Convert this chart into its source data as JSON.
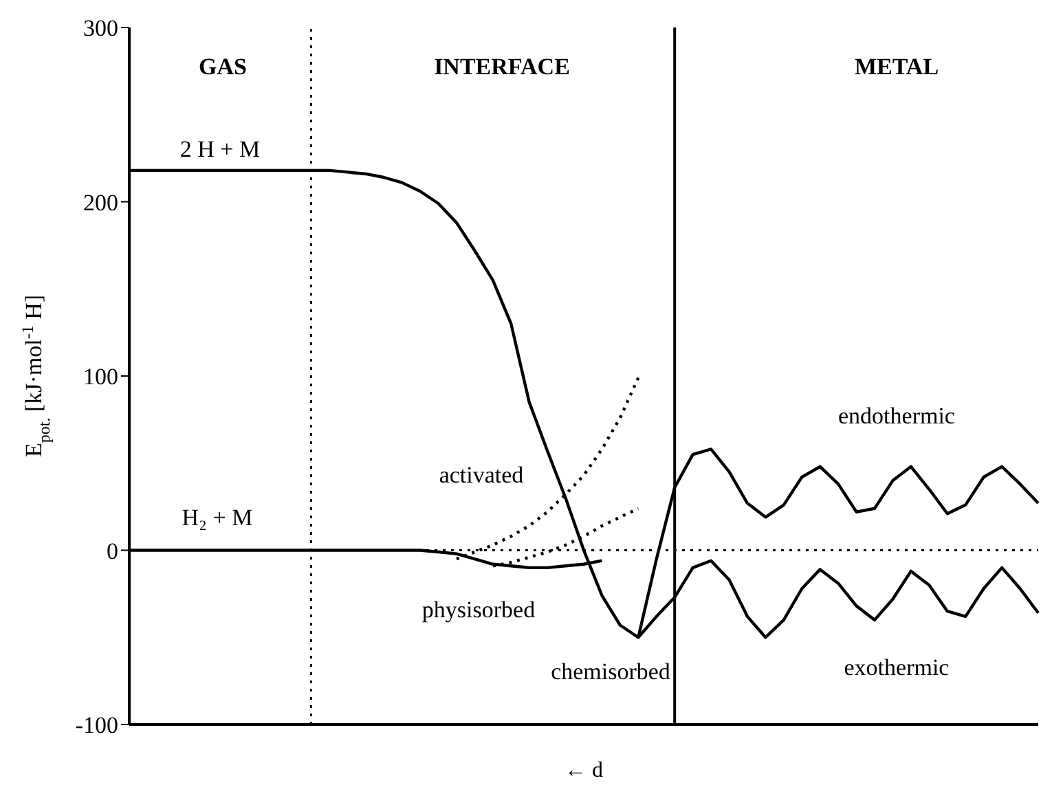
{
  "chart_data": {
    "type": "line",
    "xlabel": "← d",
    "ylabel": "E$_{pot.}$ [kJ·mol$^{-1}$ H]",
    "categories": [
      null,
      null,
      null,
      null,
      null,
      null,
      null,
      null,
      null,
      null,
      null,
      null,
      null,
      null,
      null,
      null,
      null,
      null,
      null,
      null,
      null,
      null,
      null,
      null,
      null,
      null,
      null,
      null,
      null,
      null,
      null,
      null,
      null,
      null,
      null,
      null,
      null,
      null,
      null,
      null,
      null,
      null,
      null,
      null,
      null,
      null,
      null,
      null,
      null,
      null,
      null
    ],
    "ylim": [
      -100,
      300
    ],
    "yticks": [
      -100,
      0,
      100,
      200,
      300
    ],
    "tick_labels": "y",
    "grid": false,
    "marker": "none",
    "series": [
      {
        "color": "#000000",
        "line_style": "solid",
        "values": [
          218,
          218,
          218,
          218,
          218,
          218,
          218,
          218,
          218,
          218,
          218,
          218,
          217,
          216,
          214,
          211,
          206,
          199,
          188,
          172,
          155,
          130,
          85,
          57,
          30,
          0,
          -26,
          -43,
          -50,
          -5,
          36,
          55,
          58,
          45,
          27,
          19,
          26,
          42,
          48,
          38,
          22,
          24,
          40,
          48,
          35,
          21,
          26,
          42,
          48,
          38,
          27
        ]
      },
      {
        "color": "#000000",
        "line_style": "solid",
        "values": [
          null,
          null,
          null,
          null,
          null,
          null,
          null,
          null,
          null,
          null,
          null,
          null,
          null,
          null,
          null,
          null,
          null,
          null,
          null,
          null,
          null,
          null,
          null,
          null,
          null,
          null,
          null,
          null,
          -50,
          -38,
          -27,
          -10,
          -6,
          -17,
          -38,
          -50,
          -40,
          -22,
          -11,
          -19,
          -32,
          -40,
          -28,
          -12,
          -20,
          -35,
          -38,
          -22,
          -10,
          -22,
          -36
        ]
      },
      {
        "color": "#000000",
        "line_style": "solid",
        "values": [
          0,
          0,
          0,
          0,
          0,
          0,
          0,
          0,
          0,
          0,
          0,
          0,
          0,
          0,
          0,
          0,
          0,
          -1,
          -2,
          -5,
          -8,
          -9,
          -10,
          -10,
          -9,
          -8,
          -6,
          null,
          null,
          null,
          null,
          null,
          null,
          null,
          null,
          null,
          null,
          null,
          null,
          null,
          null,
          null,
          null,
          null,
          null,
          null,
          null,
          null,
          null,
          null,
          null
        ]
      },
      {
        "color": "#000000",
        "line_style": "dotted",
        "values": [
          null,
          null,
          null,
          null,
          null,
          null,
          null,
          null,
          null,
          null,
          null,
          null,
          null,
          null,
          null,
          null,
          null,
          null,
          -5,
          -1,
          3,
          8,
          14,
          22,
          32,
          43,
          58,
          76,
          99,
          null,
          null,
          null,
          null,
          null,
          null,
          null,
          null,
          null,
          null,
          null,
          null,
          null,
          null,
          null,
          null,
          null,
          null,
          null,
          null,
          null,
          null
        ]
      },
      {
        "color": "#000000",
        "line_style": "dotted",
        "values": [
          null,
          null,
          null,
          null,
          null,
          null,
          null,
          null,
          null,
          null,
          null,
          null,
          null,
          null,
          null,
          null,
          null,
          null,
          null,
          null,
          -9,
          -7,
          -4,
          -1,
          3,
          8,
          14,
          19,
          24,
          null,
          null,
          null,
          null,
          null,
          null,
          null,
          null,
          null,
          null,
          null,
          null,
          null,
          null,
          null,
          null,
          null,
          null,
          null,
          null,
          null,
          null
        ]
      }
    ],
    "ref_lines": [
      {
        "axis": "y",
        "value": 0,
        "line_style": "dotted",
        "color": "#000000"
      }
    ],
    "annotations": [
      "GAS",
      "INTERFACE",
      "METAL",
      "2 H + M",
      "H₂ + M",
      "activated",
      "physisorbed",
      "chemisorbed",
      "endothermic",
      "exothermic"
    ]
  }
}
